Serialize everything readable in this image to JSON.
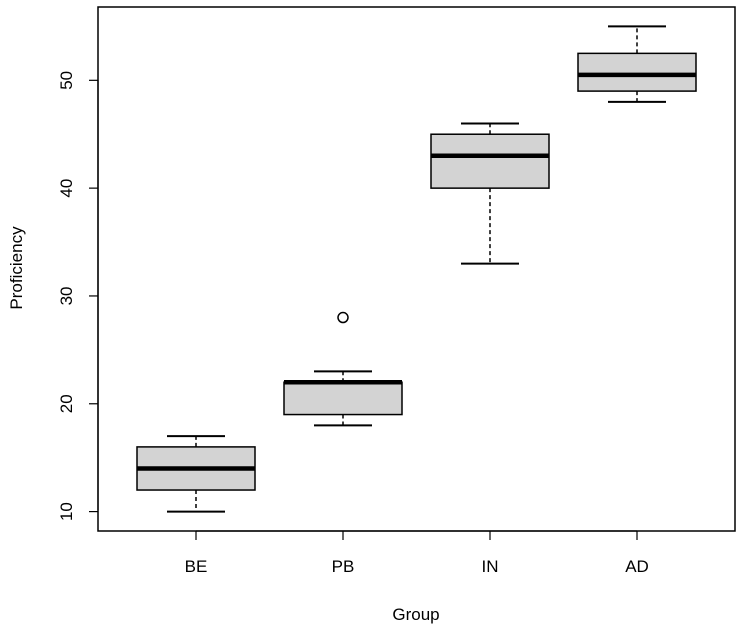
{
  "chart_data": {
    "type": "boxplot",
    "xlabel": "Group",
    "ylabel": "Proficiency",
    "categories": [
      "BE",
      "PB",
      "IN",
      "AD"
    ],
    "boxes": [
      {
        "category": "BE",
        "whisker_low": 10,
        "q1": 12,
        "median": 14,
        "q3": 16,
        "whisker_high": 17,
        "outliers": []
      },
      {
        "category": "PB",
        "whisker_low": 18,
        "q1": 19,
        "median": 22,
        "q3": 22,
        "whisker_high": 23,
        "outliers": [
          28
        ]
      },
      {
        "category": "IN",
        "whisker_low": 33,
        "q1": 40,
        "median": 43,
        "q3": 45,
        "whisker_high": 46,
        "outliers": []
      },
      {
        "category": "AD",
        "whisker_low": 48,
        "q1": 49,
        "median": 50.5,
        "q3": 52.5,
        "whisker_high": 55,
        "outliers": []
      }
    ],
    "yticks": [
      10,
      20,
      30,
      40,
      50
    ],
    "ylim": [
      8.2,
      56.8
    ],
    "grid": false,
    "colors": {
      "box_fill": "#d3d3d3",
      "stroke": "#000000"
    }
  }
}
